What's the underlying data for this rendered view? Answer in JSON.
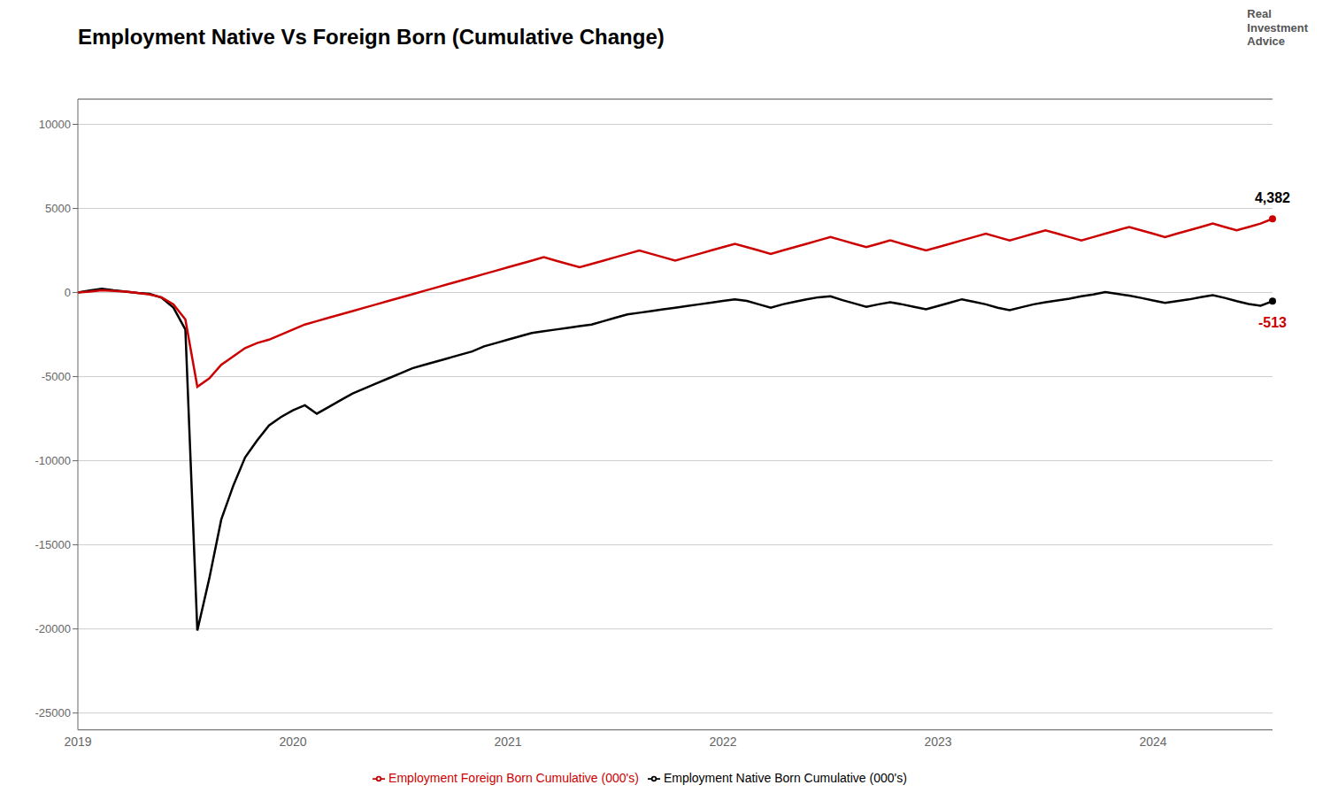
{
  "chart_data": {
    "type": "line",
    "title": "Employment Native Vs Foreign Born (Cumulative Change)",
    "categories": [
      "2019",
      null,
      null,
      null,
      null,
      null,
      null,
      null,
      null,
      null,
      null,
      null,
      null,
      null,
      null,
      null,
      null,
      null,
      "2020",
      null,
      null,
      null,
      null,
      null,
      null,
      null,
      null,
      null,
      null,
      null,
      null,
      null,
      null,
      null,
      null,
      null,
      "2021",
      null,
      null,
      null,
      null,
      null,
      null,
      null,
      null,
      null,
      null,
      null,
      null,
      null,
      null,
      null,
      null,
      null,
      "2022",
      null,
      null,
      null,
      null,
      null,
      null,
      null,
      null,
      null,
      null,
      null,
      null,
      null,
      null,
      null,
      null,
      null,
      "2023",
      null,
      null,
      null,
      null,
      null,
      null,
      null,
      null,
      null,
      null,
      null,
      null,
      null,
      null,
      null,
      null,
      null,
      "2024",
      null,
      null,
      null,
      null,
      null,
      null,
      null,
      null,
      null,
      null
    ],
    "series": [
      {
        "name": "Employment Native Born Cumulative (000's)",
        "color": "#000000",
        "values": [
          0,
          120,
          230,
          130,
          60,
          -20,
          -80,
          -300,
          -900,
          -2200,
          -20100,
          -17000,
          -13500,
          -11500,
          -9800,
          -8800,
          -7900,
          -7400,
          -7000,
          -6700,
          -7200,
          -6800,
          -6400,
          -6000,
          -5700,
          -5400,
          -5100,
          -4800,
          -4500,
          -4300,
          -4100,
          -3900,
          -3700,
          -3500,
          -3200,
          -3000,
          -2800,
          -2600,
          -2400,
          -2300,
          -2200,
          -2100,
          -2000,
          -1900,
          -1700,
          -1500,
          -1300,
          -1200,
          -1100,
          -1000,
          -900,
          -800,
          -700,
          -600,
          -500,
          -400,
          -500,
          -700,
          -900,
          -700,
          -550,
          -400,
          -280,
          -220,
          -450,
          -650,
          -850,
          -700,
          -580,
          -700,
          -850,
          -1000,
          -800,
          -600,
          -400,
          -550,
          -700,
          -900,
          -1050,
          -870,
          -700,
          -580,
          -470,
          -360,
          -220,
          -110,
          30,
          -80,
          -180,
          -320,
          -470,
          -620,
          -510,
          -410,
          -270,
          -160,
          -320,
          -510,
          -680,
          -780,
          -513
        ]
      },
      {
        "name": "Employment Foreign Born Cumulative (000's)",
        "color": "#cc0000",
        "values": [
          0,
          60,
          130,
          100,
          60,
          -20,
          -120,
          -280,
          -700,
          -1600,
          -5600,
          -5100,
          -4300,
          -3800,
          -3300,
          -3000,
          -2800,
          -2500,
          -2200,
          -1900,
          -1700,
          -1500,
          -1300,
          -1100,
          -900,
          -700,
          -500,
          -300,
          -100,
          100,
          300,
          500,
          700,
          900,
          1100,
          1300,
          1500,
          1700,
          1900,
          2100,
          1900,
          1700,
          1500,
          1700,
          1900,
          2100,
          2300,
          2500,
          2300,
          2100,
          1900,
          2100,
          2300,
          2500,
          2700,
          2900,
          2700,
          2500,
          2300,
          2500,
          2700,
          2900,
          3100,
          3300,
          3100,
          2900,
          2700,
          2900,
          3100,
          2900,
          2700,
          2500,
          2700,
          2900,
          3100,
          3300,
          3500,
          3300,
          3100,
          3300,
          3500,
          3700,
          3500,
          3300,
          3100,
          3300,
          3500,
          3700,
          3900,
          3700,
          3500,
          3300,
          3500,
          3700,
          3900,
          4100,
          3900,
          3700,
          3900,
          4100,
          4382
        ]
      }
    ],
    "ylim": [
      -26000,
      11500
    ],
    "yticks": [
      -25000,
      -20000,
      -15000,
      -10000,
      -5000,
      0,
      5000,
      10000
    ],
    "grid": true,
    "legend": "bottom",
    "annotations": [
      {
        "text": "4,382",
        "series": "Employment Foreign Born Cumulative (000's)",
        "color": "#000000"
      },
      {
        "text": "-513",
        "series": "Employment Native Born Cumulative (000's)",
        "color": "#cc0000"
      },
      {
        "text": "Real\nInvestment\nAdvice"
      }
    ]
  }
}
